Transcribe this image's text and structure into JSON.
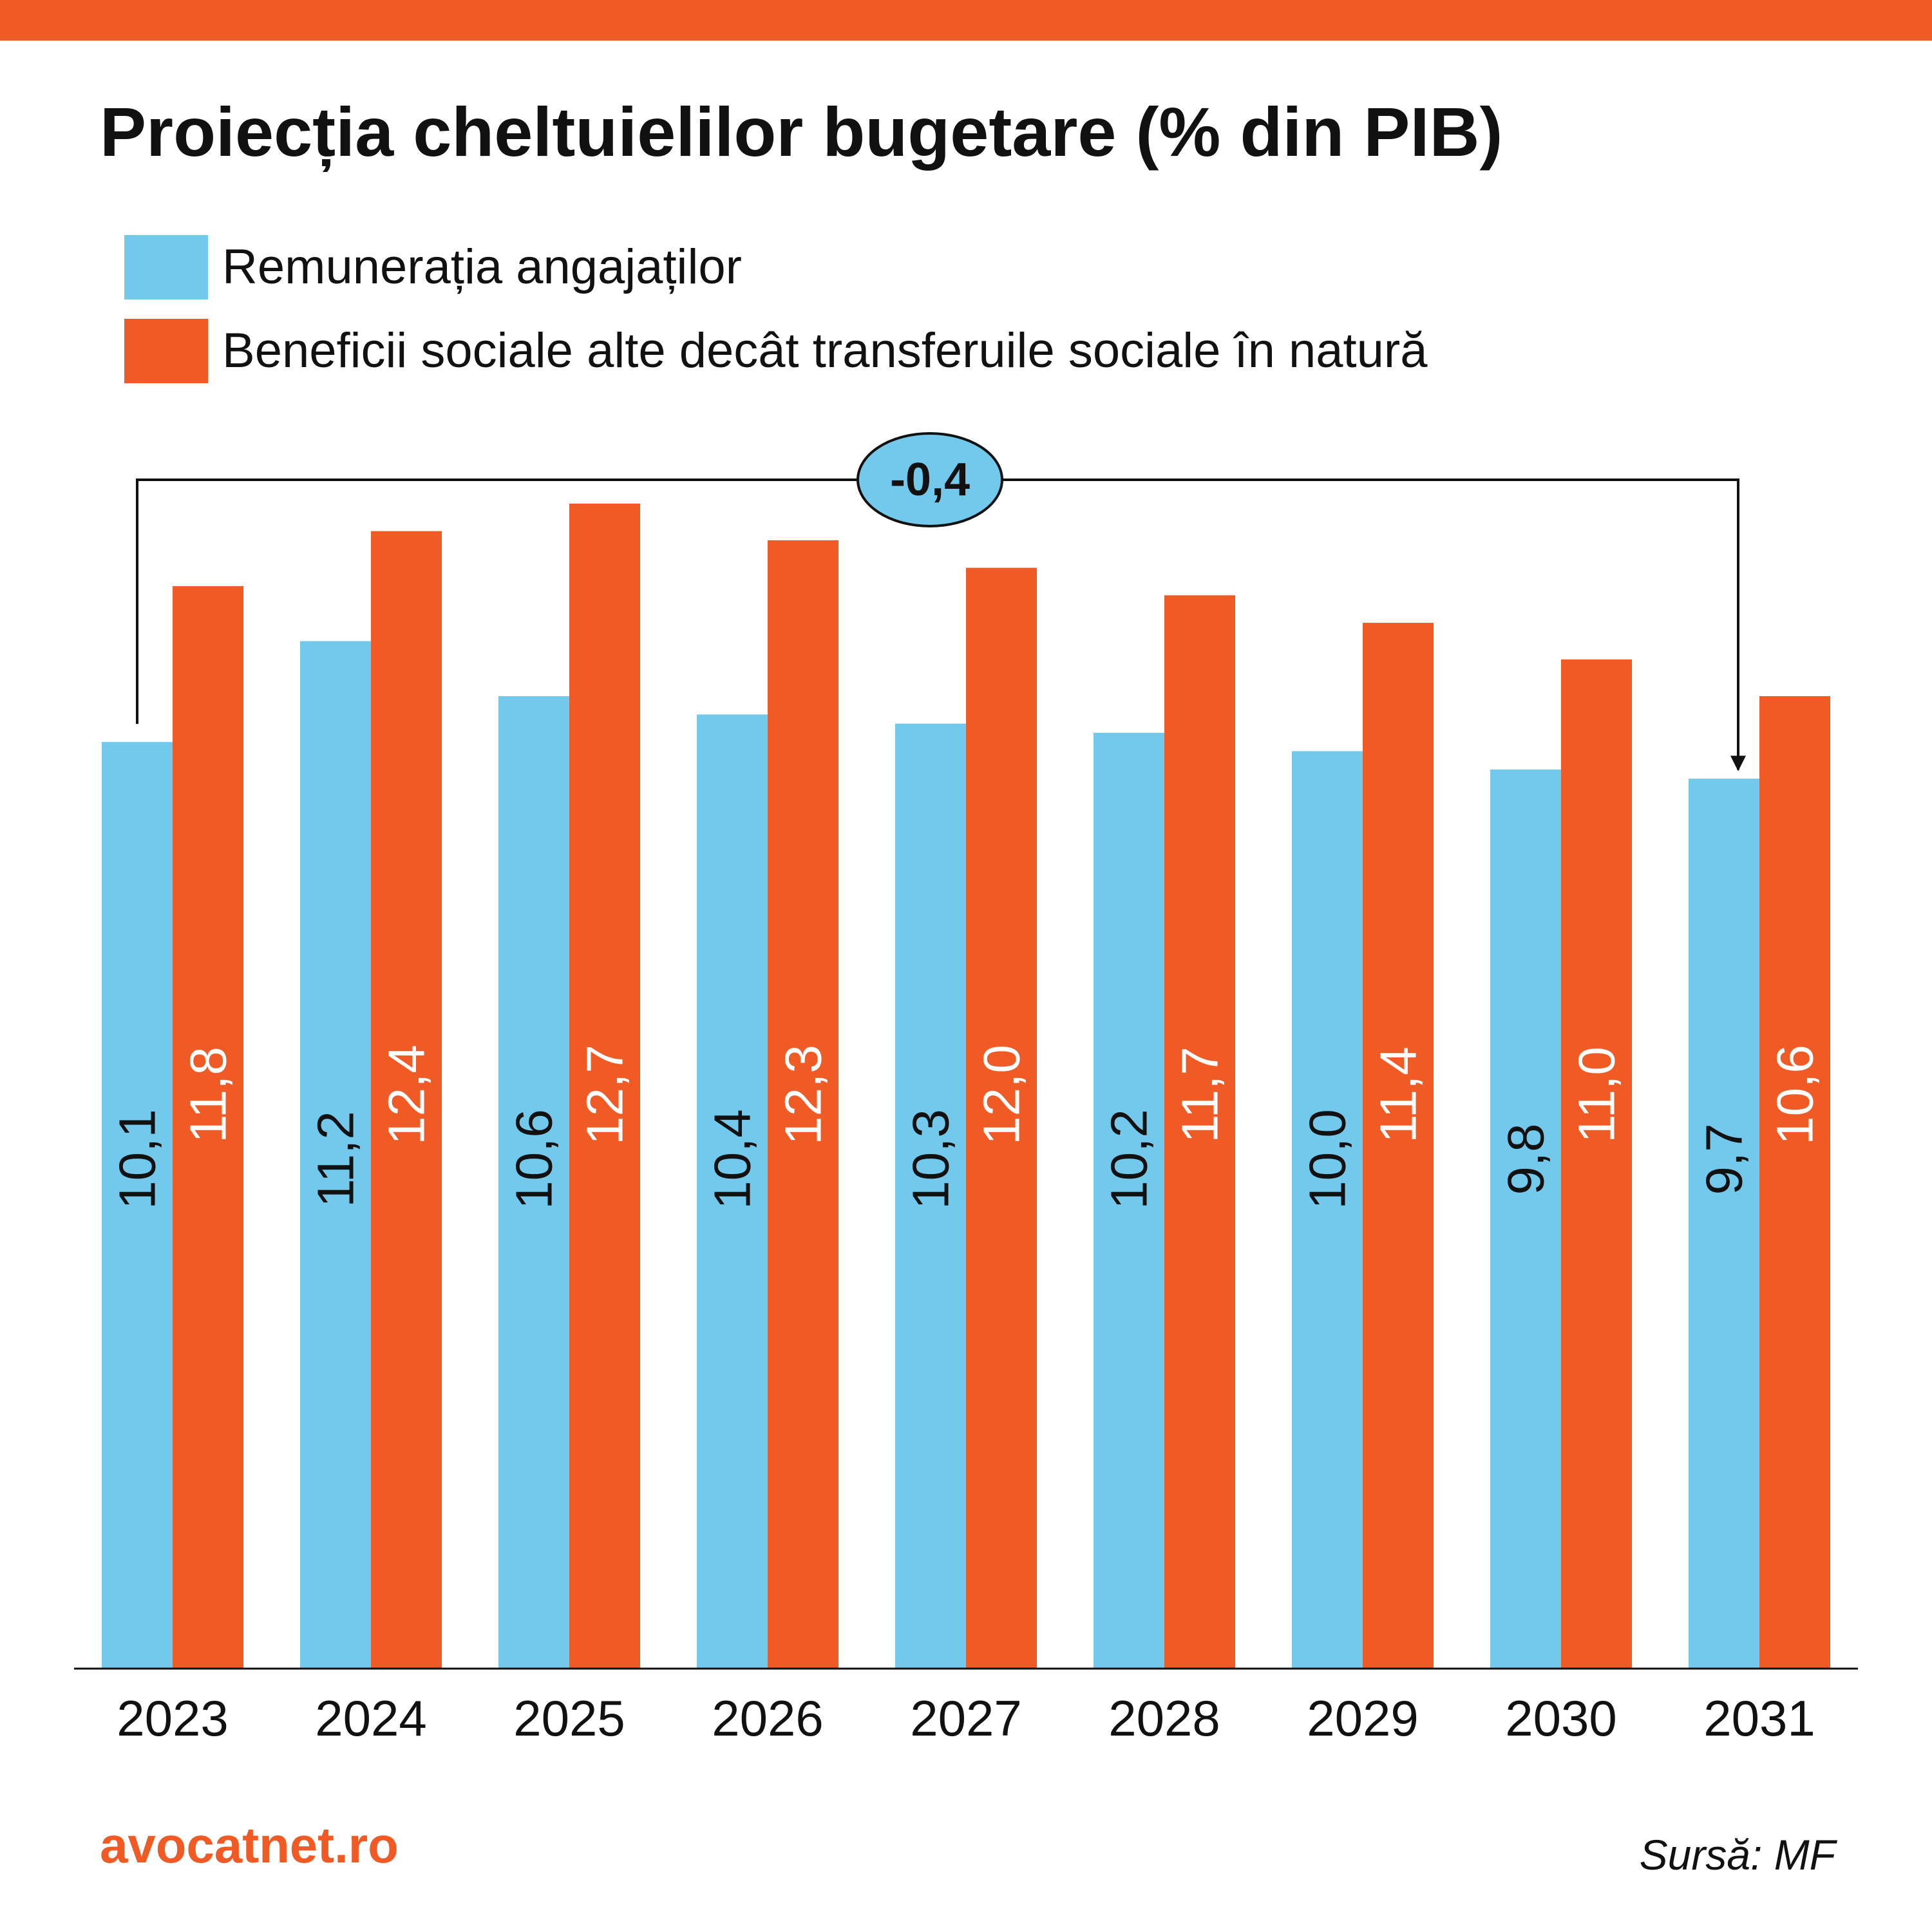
{
  "colors": {
    "accent": "#F05A25",
    "series_blue": "#72C9EB",
    "series_orange": "#F05A25",
    "text": "#111111",
    "label_on_orange": "#FFFFFF",
    "badge_fill": "#72C9EB"
  },
  "header": {
    "title": "Proiecția cheltuielilor bugetare (% din PIB)"
  },
  "legend": {
    "items": [
      {
        "label": "Remunerația angajaților",
        "color": "#72C9EB"
      },
      {
        "label": "Beneficii sociale alte decât transferuile sociale în natură",
        "color": "#F05A25"
      }
    ]
  },
  "chart_data": {
    "type": "bar",
    "categories": [
      "2023",
      "2024",
      "2025",
      "2026",
      "2027",
      "2028",
      "2029",
      "2030",
      "2031"
    ],
    "series": [
      {
        "name": "Remunerația angajaților",
        "values": [
          10.1,
          11.2,
          10.6,
          10.4,
          10.3,
          10.2,
          10.0,
          9.8,
          9.7
        ],
        "labels": [
          "10,1",
          "11,2",
          "10,6",
          "10,4",
          "10,3",
          "10,2",
          "10,0",
          "9,8",
          "9,7"
        ]
      },
      {
        "name": "Beneficii sociale alte decât transferuile sociale în natură",
        "values": [
          11.8,
          12.4,
          12.7,
          12.3,
          12.0,
          11.7,
          11.4,
          11.0,
          10.6
        ],
        "labels": [
          "11,8",
          "12,4",
          "12,7",
          "12,3",
          "12,0",
          "11,7",
          "11,4",
          "11,0",
          "10,6"
        ]
      }
    ],
    "ylim": [
      0,
      12.7
    ],
    "grid": false,
    "legend_position": "top-left",
    "data_labels": "inside-rotated",
    "annotation": {
      "text": "-0,4",
      "from_category": "2023",
      "to_category": "2031",
      "series": "Remunerația angajaților"
    }
  },
  "footer": {
    "brand": "avocatnet.ro",
    "source": "Sursă: MF"
  }
}
